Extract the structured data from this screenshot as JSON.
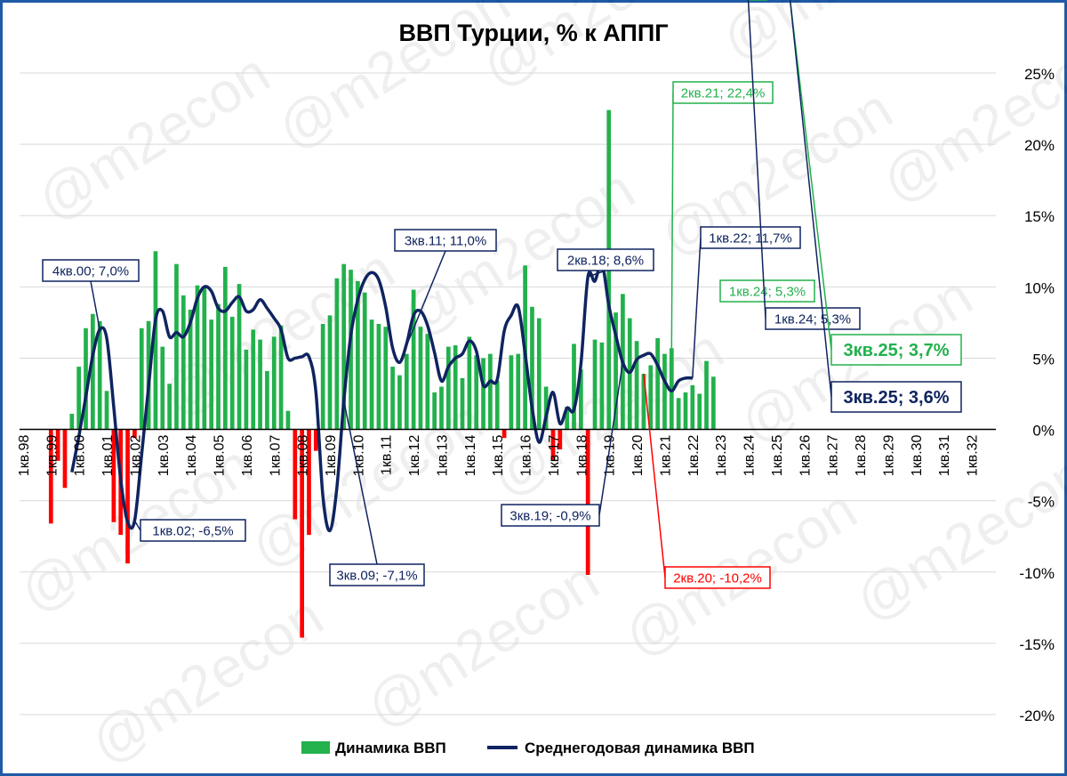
{
  "chart_data": {
    "type": "bar",
    "title": "ВВП Турции, % к АППГ",
    "watermark": "@m2econ",
    "ylim": [
      -20,
      25
    ],
    "yticks": [
      25,
      20,
      15,
      10,
      5,
      0,
      -5,
      -10,
      -15,
      -20
    ],
    "ytick_labels": [
      "25%",
      "20%",
      "15%",
      "10%",
      "5%",
      "0%",
      "-5%",
      "-10%",
      "-15%",
      "-20%"
    ],
    "xtick_labels": [
      "1кв.98",
      "1кв.99",
      "1кв.00",
      "1кв.01",
      "1кв.02",
      "1кв.03",
      "1кв.04",
      "1кв.05",
      "1кв.06",
      "1кв.07",
      "1кв.08",
      "1кв.09",
      "1кв.10",
      "1кв.11",
      "1кв.12",
      "1кв.13",
      "1кв.14",
      "1кв.15",
      "1кв.16",
      "1кв.17",
      "1кв.18",
      "1кв.19",
      "1кв.20",
      "1кв.21",
      "1кв.22",
      "1кв.23",
      "1кв.24",
      "1кв.25",
      "1кв.26",
      "1кв.27",
      "1кв.28",
      "1кв.29",
      "1кв.30",
      "1кв.31",
      "1кв.32"
    ],
    "colors": {
      "positive": "#22b14c",
      "negative": "#ff0000",
      "line": "#0f2460",
      "grid": "#d9d9d9"
    },
    "series": [
      {
        "name": "Динамика ВВП",
        "type": "bar",
        "start": "1кв.99",
        "values": [
          -6.6,
          -2.2,
          -4.1,
          1.1,
          4.4,
          7.1,
          8.1,
          7.6,
          2.7,
          -6.5,
          -7.4,
          -9.4,
          -0.6,
          7.1,
          7.6,
          12.5,
          5.8,
          3.2,
          11.6,
          9.4,
          8.4,
          10.1,
          10.0,
          7.7,
          8.8,
          11.4,
          7.9,
          10.2,
          5.6,
          7.0,
          6.3,
          4.1,
          6.5,
          7.3,
          1.3,
          -6.3,
          -14.6,
          -7.4,
          -1.5,
          7.4,
          8.0,
          10.6,
          11.6,
          11.2,
          10.4,
          9.6,
          7.7,
          7.4,
          7.2,
          4.4,
          3.8,
          5.3,
          9.8,
          7.2,
          6.7,
          2.6,
          3.0,
          5.8,
          5.9,
          3.6,
          6.5,
          5.2,
          5.0,
          5.3,
          3.4,
          -0.6,
          5.2,
          5.3,
          11.5,
          8.6,
          7.8,
          3.0,
          -2.2,
          -1.4,
          1.6,
          6.0,
          4.2,
          -10.2,
          6.3,
          6.1,
          22.4,
          8.2,
          9.5,
          7.8,
          6.2,
          3.9,
          4.5,
          6.4,
          5.3,
          5.7,
          2.2,
          2.6,
          3.1,
          2.5,
          4.8,
          3.7
        ]
      },
      {
        "name": "Среднегодовая динамика ВВП",
        "type": "line",
        "start": "4кв.99",
        "values": [
          -3.0,
          -0.5,
          2.3,
          5.2,
          7.0,
          6.4,
          1.6,
          -3.5,
          -6.5,
          -6.4,
          -1.8,
          3.0,
          7.7,
          8.3,
          6.5,
          6.8,
          6.5,
          7.5,
          9.2,
          10.0,
          9.7,
          8.5,
          8.3,
          8.9,
          9.3,
          8.3,
          8.4,
          9.1,
          8.5,
          7.8,
          7.0,
          5.0,
          5.0,
          5.1,
          5.1,
          2.6,
          -4.7,
          -7.1,
          -4.1,
          2.0,
          6.6,
          9.1,
          10.5,
          11.0,
          10.5,
          8.6,
          5.7,
          4.7,
          6.0,
          8.0,
          8.3,
          7.3,
          5.4,
          3.4,
          4.4,
          5.0,
          5.3,
          6.2,
          5.5,
          3.1,
          3.4,
          3.5,
          6.9,
          8.0,
          8.6,
          5.3,
          1.5,
          -0.9,
          0.9,
          2.6,
          0.4,
          1.5,
          1.4,
          4.6,
          10.7,
          10.4,
          11.7,
          8.7,
          6.6,
          4.7,
          4.0,
          4.9,
          5.2,
          5.3,
          4.5,
          3.4,
          2.7,
          3.4,
          3.6,
          3.6
        ]
      }
    ],
    "annotations": [
      {
        "label": "4кв.00; 7,0%",
        "series": "line",
        "color": "#0f2460"
      },
      {
        "label": "1кв.02; -6,5%",
        "series": "line",
        "color": "#0f2460"
      },
      {
        "label": "3кв.09; -7,1%",
        "series": "line",
        "color": "#0f2460"
      },
      {
        "label": "3кв.11; 11,0%",
        "series": "line",
        "color": "#0f2460"
      },
      {
        "label": "2кв.18; 8,6%",
        "series": "line",
        "color": "#0f2460"
      },
      {
        "label": "3кв.19; -0,9%",
        "series": "line",
        "color": "#0f2460"
      },
      {
        "label": "2кв.20; -10,2%",
        "series": "bar",
        "color": "#ff0000"
      },
      {
        "label": "2кв.21; 22,4%",
        "series": "bar",
        "color": "#22b14c"
      },
      {
        "label": "1кв.22; 11,7%",
        "series": "line",
        "color": "#0f2460"
      },
      {
        "label": "1кв.24; 5,3%",
        "series": "bar",
        "color": "#22b14c"
      },
      {
        "label": "1кв.24; 5,3%",
        "series": "line",
        "color": "#0f2460"
      },
      {
        "label": "3кв.25; 3,7%",
        "series": "bar",
        "color": "#22b14c"
      },
      {
        "label": "3кв.25; 3,6%",
        "series": "line",
        "color": "#0f2460"
      }
    ],
    "legend": {
      "position": "bottom",
      "items": [
        "Динамика ВВП",
        "Среднегодовая динамика ВВП"
      ]
    },
    "grid": true
  }
}
